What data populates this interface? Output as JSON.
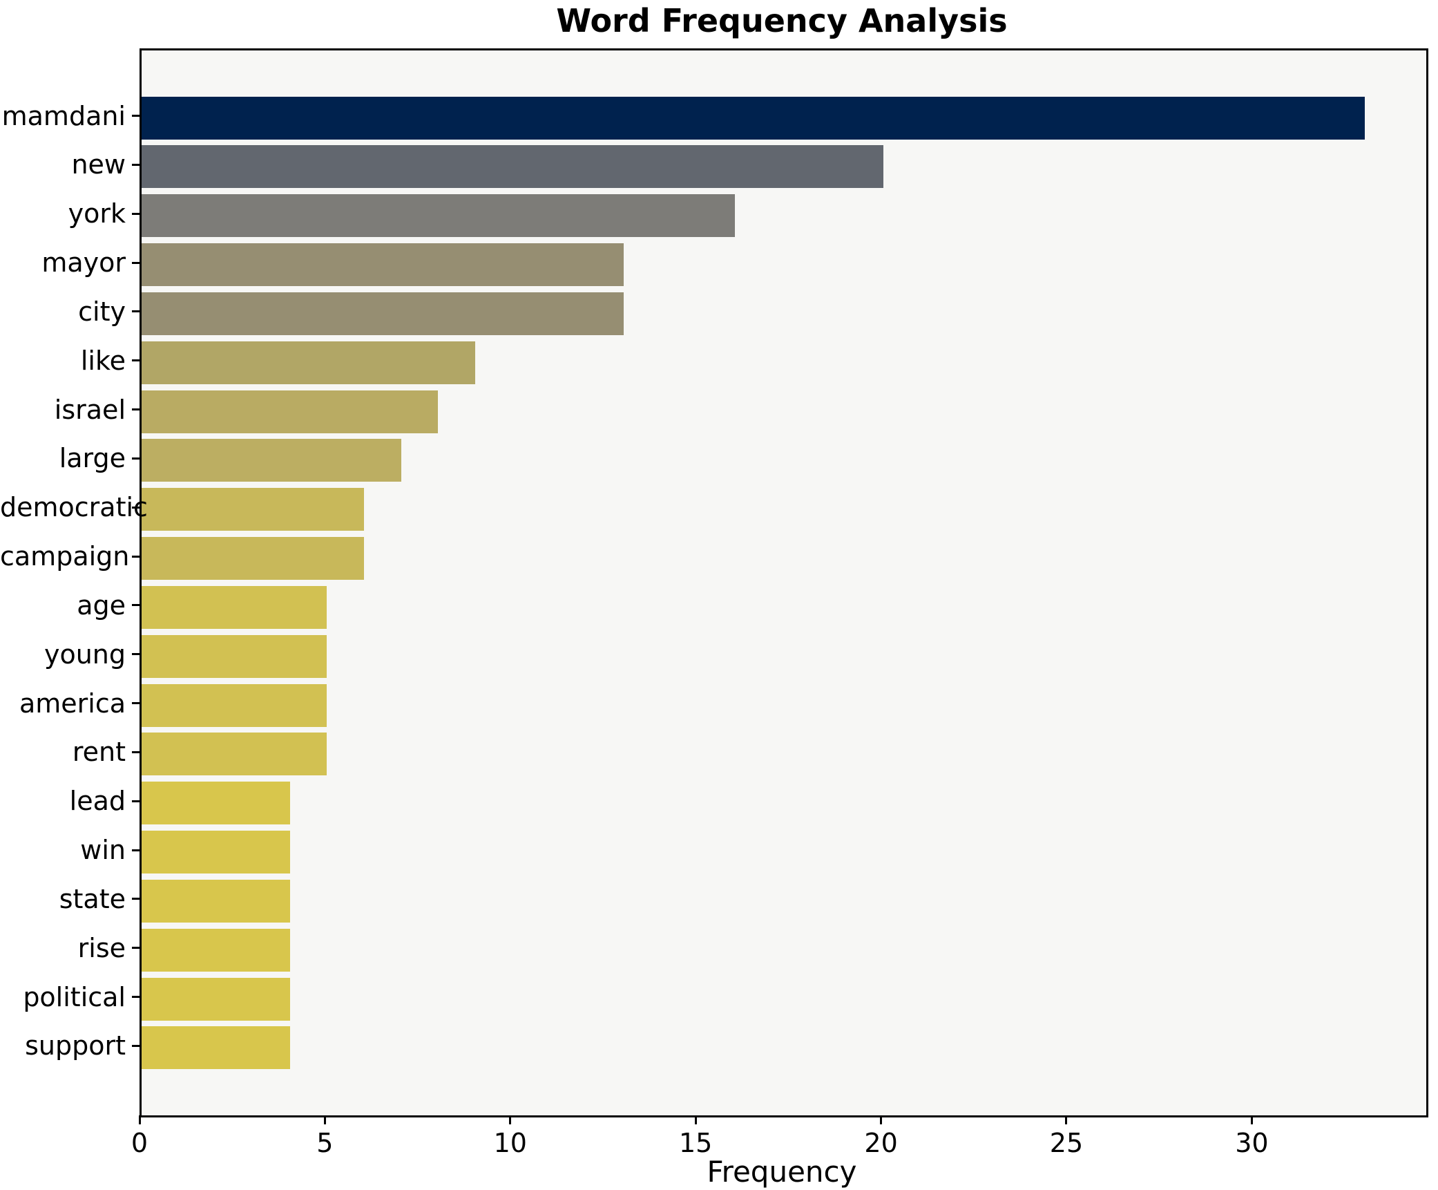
{
  "chart_data": {
    "type": "bar",
    "orientation": "horizontal",
    "title": "Word Frequency Analysis",
    "xlabel": "Frequency",
    "ylabel": "",
    "categories": [
      "mamdani",
      "new",
      "york",
      "mayor",
      "city",
      "like",
      "israel",
      "large",
      "democratic",
      "campaign",
      "age",
      "young",
      "america",
      "rent",
      "lead",
      "win",
      "state",
      "rise",
      "political",
      "support"
    ],
    "values": [
      33,
      20,
      16,
      13,
      13,
      9,
      8,
      7,
      6,
      6,
      5,
      5,
      5,
      5,
      4,
      4,
      4,
      4,
      4,
      4
    ],
    "bar_colors": [
      "#00224E",
      "#62676F",
      "#7D7C78",
      "#968E72",
      "#968E72",
      "#B1A666",
      "#B9AB63",
      "#BCAE62",
      "#C8B85A",
      "#C8B85A",
      "#D2C152",
      "#D2C152",
      "#D2C152",
      "#D2C152",
      "#D8C64C",
      "#D8C64C",
      "#D8C64C",
      "#D8C64C",
      "#D8C64C",
      "#D8C64C"
    ],
    "xlim": [
      0,
      34.65
    ],
    "x_ticks": [
      0,
      5,
      10,
      15,
      20,
      25,
      30
    ],
    "grid": false,
    "legend_position": "none",
    "plot_background": "#f7f7f5",
    "figure_background": "#ffffff",
    "spine_color": "#000000"
  }
}
